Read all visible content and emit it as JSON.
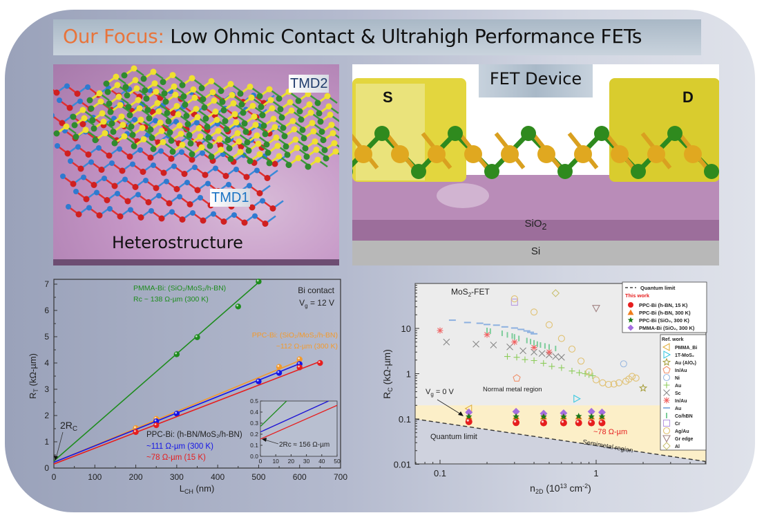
{
  "header": {
    "title_accent": "Our Focus:",
    "title_main": " Low Ohmic Contact & Ultrahigh Performance FETs",
    "accent_color": "#e8743b"
  },
  "heterostructure_panel": {
    "label": "Heterostructure",
    "tag_top": "TMD2",
    "tag_bottom": "TMD1",
    "tag_color_top": "#1f3b6b",
    "tag_color_bottom": "#1a73c4"
  },
  "fet_panel": {
    "title": "FET Device",
    "source_label": "S",
    "drain_label": "D",
    "oxide_label": "SiO",
    "oxide_sub": "2",
    "substrate_label": "Si"
  },
  "chart_data": [
    {
      "type": "scatter",
      "title": "",
      "xlabel": "L_CH (nm)",
      "ylabel": "R_T (kΩ-µm)",
      "xlim": [
        0,
        700
      ],
      "ylim": [
        0,
        7.2
      ],
      "xticks": [
        "0",
        "100",
        "200",
        "300",
        "400",
        "500",
        "600",
        "700"
      ],
      "yticks": [
        "0",
        "1",
        "2",
        "3",
        "4",
        "5",
        "6",
        "7"
      ],
      "grid": false,
      "annotations": {
        "corner_1": "Bi contact",
        "corner_2": "V",
        "corner_2_sub": "g",
        "corner_2_tail": " = 12 V",
        "green_1": "PMMA-Bi: (SiO₂/MoS₂/h-BN)",
        "green_2": "Rᴄ ~ 138 Ω-µm (300 K)",
        "orange_1": "PPC-Bi: (SiO₂/MoS₂/h-BN)",
        "orange_2": "~112 Ω-µm (300 K)",
        "black_1": "PPC-Bi: (h-BN/MoS₂/h-BN)",
        "blue_1": "~111 Ω-µm (300 K)",
        "red_1": "~78 Ω-µm (15 K)",
        "rc_label": "2R",
        "rc_sub": "C",
        "inset_note": "2Rᴄ ≈ 156 Ω-µm"
      },
      "series": [
        {
          "name": "PMMA-Bi (SiO2/MoS2/h-BN) 300 K",
          "color": "#1e8c1e",
          "intercept": 0.27,
          "slope": 0.0136,
          "points": [
            [
              300,
              4.33
            ],
            [
              350,
              4.98
            ],
            [
              450,
              6.15
            ],
            [
              500,
              7.1
            ]
          ]
        },
        {
          "name": "PPC-Bi (SiO2/MoS2/h-BN) 300 K",
          "color": "#f39a2c",
          "intercept": 0.22,
          "slope": 0.00645,
          "points": [
            [
              200,
              1.52
            ],
            [
              250,
              1.87
            ],
            [
              550,
              3.85
            ],
            [
              600,
              4.14
            ]
          ]
        },
        {
          "name": "PPC-Bi (h-BN/MoS2/h-BN) 300 K",
          "color": "#1414e6",
          "intercept": 0.22,
          "slope": 0.00625,
          "points": [
            [
              250,
              1.78
            ],
            [
              300,
              2.07
            ],
            [
              500,
              3.3
            ],
            [
              550,
              3.62
            ],
            [
              600,
              3.96
            ]
          ]
        },
        {
          "name": "PPC-Bi (h-BN/MoS2/h-BN) 15 K",
          "color": "#e61e1e",
          "intercept": 0.156,
          "slope": 0.006,
          "points": [
            [
              200,
              1.37
            ],
            [
              250,
              1.63
            ],
            [
              600,
              3.83
            ],
            [
              650,
              4.0
            ]
          ]
        }
      ],
      "inset": {
        "xlim": [
          0,
          50
        ],
        "ylim": [
          0,
          0.5
        ],
        "xticks": [
          "0",
          "10",
          "20",
          "30",
          "40",
          "50"
        ],
        "yticks": [
          "0.0",
          "0.1",
          "0.2",
          "0.3",
          "0.4",
          "0.5"
        ]
      }
    },
    {
      "type": "scatter",
      "title": "MoS₂-FET",
      "xlabel": "n_2D (10^13 cm^-2)",
      "ylabel": "R_C (kΩ-µm)",
      "xscale": "log",
      "yscale": "log",
      "xlim": [
        0.069,
        5.0
      ],
      "ylim": [
        0.01,
        100
      ],
      "xticks": [
        "0.1",
        "1"
      ],
      "yticks": [
        "0.01",
        "0.1",
        "1",
        "10"
      ],
      "grid": false,
      "regions": {
        "normal_metal": "Normal metal region",
        "semimetal": "Semimetal region",
        "quantum": "Quantum limit",
        "semimetal_upper_bound": 0.2
      },
      "annotations": {
        "vg": "V",
        "vg_sub": "g",
        "vg_tail": " = 0 V",
        "this_work_value": "~78 Ω-µm"
      },
      "quantum_limit_line": {
        "x": [
          0.069,
          5.0
        ],
        "y": [
          0.1,
          0.0115
        ]
      },
      "legend_this_work": {
        "placement": "top-right",
        "header_line": "Quantum limit",
        "header": "This work",
        "items": [
          {
            "label": "PPC-Bi (h-BN, 15 K)",
            "marker": "ball",
            "color": "#e61e1e"
          },
          {
            "label": "PPC-Bi (h-BN, 300 K)",
            "marker": "triangle",
            "color": "#f07d1a"
          },
          {
            "label": "PPC-Bi (SiO₂, 300 K)",
            "marker": "star",
            "color": "#1a7a1a"
          },
          {
            "label": "PMMA-Bi (SiO₂, 300 K)",
            "marker": "diamond",
            "color": "#a46ee0"
          }
        ]
      },
      "legend_ref": {
        "placement": "right",
        "header": "Ref. work",
        "items": [
          {
            "label": "PMMA_Bi",
            "marker": "tri-left",
            "color": "#e0b040"
          },
          {
            "label": "1T-MoS₂",
            "marker": "tri-right",
            "color": "#3cc8e0"
          },
          {
            "label": "Au (AlOₓ)",
            "marker": "star-open",
            "color": "#a8a040"
          },
          {
            "label": "In/Au",
            "marker": "pentagon",
            "color": "#f0906a"
          },
          {
            "label": "Ni",
            "marker": "circle",
            "color": "#9ab8e0"
          },
          {
            "label": "Au",
            "marker": "plus",
            "color": "#8ccc5a"
          },
          {
            "label": "Sc",
            "marker": "x",
            "color": "#888888"
          },
          {
            "label": "In/Au",
            "marker": "asterisk",
            "color": "#f06060"
          },
          {
            "label": "Au",
            "marker": "hbar",
            "color": "#8cb0e0"
          },
          {
            "label": "Co/hBN",
            "marker": "vbar",
            "color": "#7ccc9a"
          },
          {
            "label": "Cr",
            "marker": "square",
            "color": "#b89ae0"
          },
          {
            "label": "Ag/Au",
            "marker": "circle",
            "color": "#e0c070"
          },
          {
            "label": "Gr edge",
            "marker": "tri-down",
            "color": "#a08080"
          },
          {
            "label": "Al",
            "marker": "diamond-open",
            "color": "#c8c070"
          }
        ]
      },
      "this_work_points": {
        "x": [
          0.153,
          0.307,
          0.461,
          0.619,
          0.773,
          0.933,
          1.09
        ],
        "ppc_hbn_15K": [
          0.087,
          0.083,
          0.082,
          0.082,
          0.082,
          0.082,
          0.082
        ],
        "ppc_hbn_300K": [
          0.111,
          0.111,
          0.111,
          0.111,
          0.111,
          0.111,
          0.111
        ],
        "ppc_sio2_300K": [
          0.113,
          0.113,
          0.112,
          0.112,
          0.115,
          0.113,
          0.113
        ],
        "pmma_sio2_300K": [
          0.14,
          0.145,
          0.132,
          0.135,
          null,
          0.145,
          0.14
        ]
      },
      "ref_points": [
        {
          "series": 0,
          "pts": [
            [
              0.153,
              0.17
            ]
          ]
        },
        {
          "series": 1,
          "pts": [
            [
              0.75,
              0.28
            ]
          ]
        },
        {
          "series": 2,
          "pts": [
            [
              2.0,
              0.48
            ]
          ]
        },
        {
          "series": 3,
          "pts": [
            [
              0.31,
              0.8
            ]
          ]
        },
        {
          "series": 4,
          "pts": [
            [
              1.5,
              1.65
            ]
          ]
        },
        {
          "series": 5,
          "pts": [
            [
              0.27,
              2.4
            ],
            [
              0.31,
              2.3
            ],
            [
              0.35,
              2.05
            ],
            [
              0.4,
              1.95
            ],
            [
              0.46,
              1.7
            ],
            [
              0.52,
              1.45
            ],
            [
              0.6,
              1.35
            ],
            [
              0.7,
              1.15
            ],
            [
              0.78,
              1.05
            ],
            [
              0.85,
              1.0
            ],
            [
              0.9,
              0.95
            ],
            [
              0.95,
              0.9
            ]
          ]
        },
        {
          "series": 6,
          "pts": [
            [
              0.11,
              5.0
            ],
            [
              0.17,
              4.5
            ],
            [
              0.22,
              4.3
            ],
            [
              0.28,
              3.9
            ],
            [
              0.34,
              3.2
            ],
            [
              0.4,
              3.0
            ],
            [
              0.45,
              2.8
            ],
            [
              0.5,
              2.6
            ],
            [
              0.55,
              2.4
            ],
            [
              0.6,
              2.3
            ]
          ]
        },
        {
          "series": 7,
          "pts": [
            [
              0.1,
              9.0
            ],
            [
              0.2,
              7.3
            ],
            [
              0.3,
              5.0
            ],
            [
              0.4,
              3.8
            ],
            [
              0.5,
              3.0
            ]
          ]
        },
        {
          "series": 8,
          "pts": [
            [
              0.12,
              15.2
            ],
            [
              0.15,
              13.5
            ],
            [
              0.18,
              13.0
            ],
            [
              0.2,
              12.2
            ],
            [
              0.23,
              11.8
            ],
            [
              0.26,
              10.8
            ],
            [
              0.3,
              10.2
            ],
            [
              0.33,
              9.5
            ],
            [
              0.36,
              8.8
            ],
            [
              0.38,
              8.2
            ],
            [
              0.4,
              7.6
            ]
          ]
        },
        {
          "series": 9,
          "pts": [
            [
              0.2,
              9.0
            ],
            [
              0.21,
              8.7
            ],
            [
              0.25,
              7.8
            ],
            [
              0.27,
              7.2
            ],
            [
              0.29,
              6.8
            ],
            [
              0.3,
              6.5
            ],
            [
              0.32,
              6.0
            ],
            [
              0.36,
              5.4
            ],
            [
              0.38,
              5.1
            ],
            [
              0.4,
              4.8
            ],
            [
              0.42,
              4.5
            ],
            [
              0.44,
              4.3
            ],
            [
              0.47,
              4.1
            ],
            [
              0.5,
              3.9
            ],
            [
              0.55,
              3.6
            ]
          ]
        },
        {
          "series": 10,
          "pts": [
            [
              0.3,
              38
            ]
          ]
        },
        {
          "series": 11,
          "pts": [
            [
              0.3,
              45
            ],
            [
              0.4,
              23
            ],
            [
              0.5,
              12
            ],
            [
              0.6,
              6.0
            ],
            [
              0.7,
              3.5
            ],
            [
              0.8,
              1.9
            ],
            [
              0.9,
              1.1
            ],
            [
              1.0,
              0.73
            ],
            [
              1.1,
              0.63
            ],
            [
              1.2,
              0.58
            ],
            [
              1.3,
              0.59
            ],
            [
              1.4,
              0.63
            ],
            [
              1.55,
              0.68
            ],
            [
              1.62,
              0.76
            ],
            [
              1.7,
              0.87
            ],
            [
              1.8,
              0.8
            ]
          ]
        },
        {
          "series": 12,
          "pts": [
            [
              1.0,
              28
            ]
          ]
        },
        {
          "series": 13,
          "pts": [
            [
              0.55,
              60
            ]
          ]
        }
      ]
    }
  ]
}
